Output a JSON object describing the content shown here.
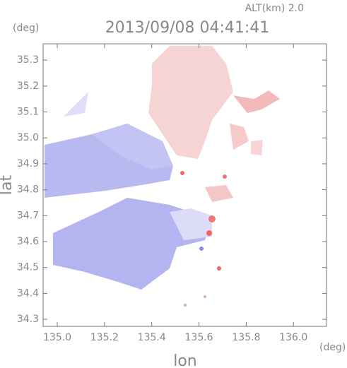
{
  "chart_data": {
    "type": "map",
    "title": "2013/09/08 04:41:41",
    "subtitle": "ALT(km) 2.0",
    "x_unit": "(deg)",
    "y_unit": "(deg)",
    "xlabel": "lon",
    "ylabel": "lat",
    "xlim": [
      134.94,
      136.14
    ],
    "ylim": [
      34.273,
      35.363
    ],
    "xticks": [
      {
        "value": 135,
        "label": "135.0"
      },
      135.2,
      135.4,
      135.6,
      135.8,
      {
        "value": 136,
        "label": "136.0"
      }
    ],
    "yticks": [
      34.3,
      34.4,
      34.5,
      34.6,
      34.7,
      34.8,
      34.9,
      {
        "value": 35,
        "label": "35.0"
      },
      35.1,
      35.2,
      35.3
    ]
  }
}
